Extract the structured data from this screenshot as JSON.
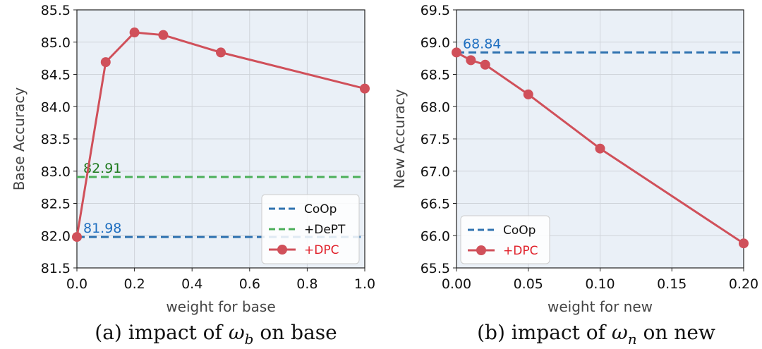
{
  "colors": {
    "background": "#eaf0f7",
    "coop": "#2f72b0",
    "dept": "#4caf5a",
    "dpc": "#d0505a",
    "annot_coop": "#1f6fc0",
    "annot_dept": "#1e7a1e",
    "legend_dpc_text": "#e0202a",
    "legend_text": "#111111"
  },
  "chart_data": [
    {
      "type": "line",
      "id": "a",
      "xlabel": "weight for base",
      "ylabel": "Base Accuracy",
      "xlim": [
        0.0,
        1.0
      ],
      "ylim": [
        81.5,
        85.5
      ],
      "xticks": [
        0.0,
        0.2,
        0.4,
        0.6,
        0.8,
        1.0
      ],
      "xtick_labels": [
        "0.0",
        "0.2",
        "0.4",
        "0.6",
        "0.8",
        "1.0"
      ],
      "yticks": [
        81.5,
        82.0,
        82.5,
        83.0,
        83.5,
        84.0,
        84.5,
        85.0,
        85.5
      ],
      "ytick_labels": [
        "81.5",
        "82.0",
        "82.5",
        "83.0",
        "83.5",
        "84.0",
        "84.5",
        "85.0",
        "85.5"
      ],
      "grid": true,
      "caption": {
        "prefix": "(a) impact of ",
        "symbol": "ω",
        "subscript": "b",
        "suffix": " on base"
      },
      "series": [
        {
          "name": "+DPC",
          "style": "solid-marker",
          "x": [
            0.0,
            0.1,
            0.2,
            0.3,
            0.5,
            1.0
          ],
          "y": [
            81.98,
            84.69,
            85.15,
            85.11,
            84.84,
            84.28
          ]
        }
      ],
      "hlines": [
        {
          "name": "CoOp",
          "value": 81.98,
          "label": "81.98"
        },
        {
          "name": "+DePT",
          "value": 82.91,
          "label": "82.91"
        }
      ],
      "legend": {
        "placement": "lower-right",
        "entries": [
          "CoOp",
          "+DePT",
          "+DPC"
        ]
      }
    },
    {
      "type": "line",
      "id": "b",
      "xlabel": "weight for new",
      "ylabel": "New Accuracy",
      "xlim": [
        0.0,
        0.2
      ],
      "ylim": [
        65.5,
        69.5
      ],
      "xticks": [
        0.0,
        0.05,
        0.1,
        0.15,
        0.2
      ],
      "xtick_labels": [
        "0.00",
        "0.05",
        "0.10",
        "0.15",
        "0.20"
      ],
      "yticks": [
        65.5,
        66.0,
        66.5,
        67.0,
        67.5,
        68.0,
        68.5,
        69.0,
        69.5
      ],
      "ytick_labels": [
        "65.5",
        "66.0",
        "66.5",
        "67.0",
        "67.5",
        "68.0",
        "68.5",
        "69.0",
        "69.5"
      ],
      "grid": true,
      "caption": {
        "prefix": "(b) impact of ",
        "symbol": "ω",
        "subscript": "n",
        "suffix": " on new"
      },
      "series": [
        {
          "name": "+DPC",
          "style": "solid-marker",
          "x": [
            0.0,
            0.01,
            0.02,
            0.05,
            0.1,
            0.2
          ],
          "y": [
            68.84,
            68.72,
            68.65,
            68.19,
            67.35,
            65.88
          ]
        }
      ],
      "hlines": [
        {
          "name": "CoOp",
          "value": 68.84,
          "label": "68.84"
        }
      ],
      "legend": {
        "placement": "lower-left",
        "entries": [
          "CoOp",
          "+DPC"
        ]
      }
    }
  ]
}
